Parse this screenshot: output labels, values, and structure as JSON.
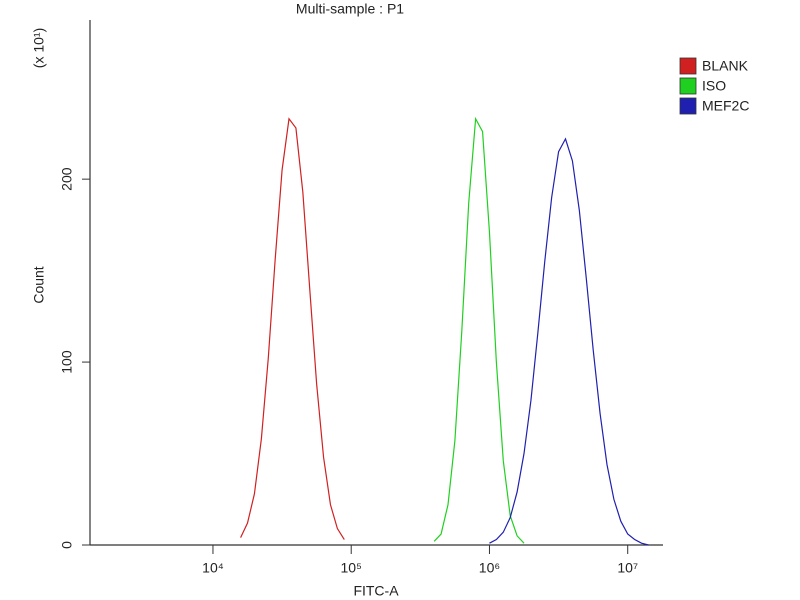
{
  "chart_data": {
    "type": "line",
    "title": "Multi-sample : P1",
    "x_label": "FITC-A",
    "y_label": "Count",
    "y_multiplier": "(x 10¹)",
    "x_scale": "log",
    "xlim": [
      1290,
      18000000
    ],
    "xticks": [
      {
        "value": 10000,
        "label": "10⁴"
      },
      {
        "value": 100000,
        "label": "10⁵"
      },
      {
        "value": 1000000,
        "label": "10⁶"
      },
      {
        "value": 10000000,
        "label": "10⁷"
      }
    ],
    "ylim": [
      0,
      287
    ],
    "yticks": [
      0,
      100,
      200
    ],
    "grid": false,
    "legend": "right",
    "series": [
      {
        "name": "BLANK",
        "color": "#d02020",
        "x": [
          15850,
          17780,
          19950,
          22390,
          25120,
          28180,
          31620,
          35480,
          39810,
          44670,
          50120,
          56230,
          63100,
          70800,
          79430,
          89130
        ],
        "values": [
          4,
          12,
          28,
          58,
          102,
          156,
          205,
          233,
          228,
          193,
          140,
          88,
          48,
          22,
          9,
          3
        ]
      },
      {
        "name": "ISO",
        "color": "#20d020",
        "x": [
          398100,
          446700,
          501200,
          562300,
          631000,
          707900,
          794300,
          891300,
          1000000,
          1122000,
          1259000,
          1413000,
          1585000,
          1778000
        ],
        "values": [
          2,
          6,
          22,
          57,
          117,
          187,
          233,
          226,
          171,
          100,
          46,
          16,
          5,
          1
        ]
      },
      {
        "name": "MEF2C",
        "color": "#2020b0",
        "x": [
          1000000,
          1122000,
          1259000,
          1413000,
          1585000,
          1778000,
          1995000,
          2239000,
          2512000,
          2818000,
          3162000,
          3548000,
          3981000,
          4467000,
          5012000,
          5623000,
          6310000,
          7079000,
          7943000,
          8913000,
          10000000,
          11220000,
          12590000,
          14130000
        ],
        "values": [
          1,
          3,
          7,
          15,
          29,
          50,
          79,
          116,
          155,
          190,
          215,
          222,
          210,
          183,
          146,
          107,
          72,
          44,
          25,
          13,
          6,
          3,
          1,
          0
        ]
      }
    ]
  }
}
